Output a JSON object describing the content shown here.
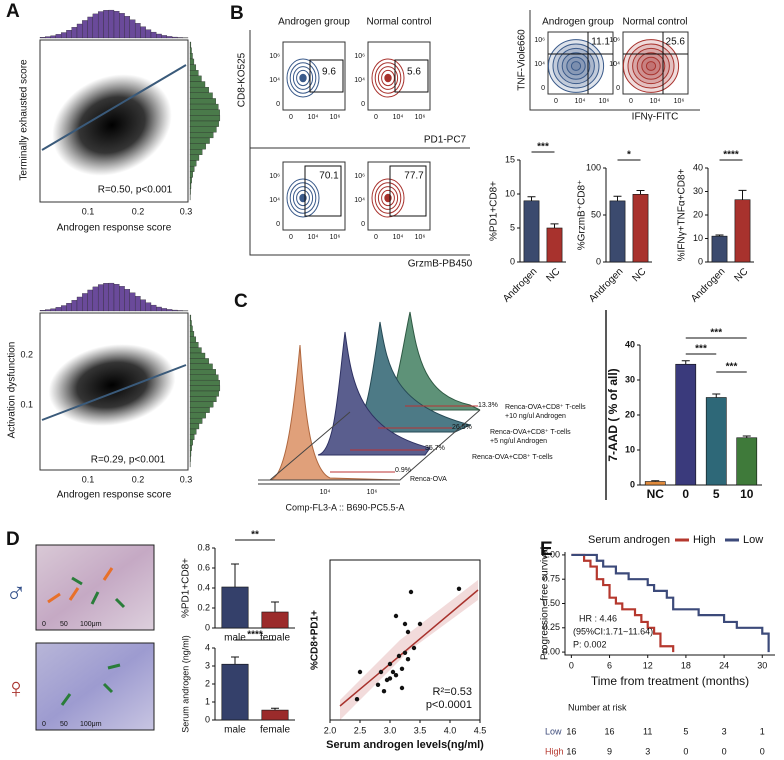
{
  "panels": {
    "letters": [
      "A",
      "B",
      "C",
      "D",
      "E"
    ]
  },
  "panel_a": [
    {
      "stat": "R=0.50, p<0.001",
      "x_label": "Androgen response score",
      "y_label": "Terminally exhausted score",
      "xticks": [
        "0.1",
        "0.2",
        "0.3"
      ]
    },
    {
      "stat": "R=0.29, p<0.001",
      "x_label": "Androgen response score",
      "y_label": "Activation dysfunction",
      "xticks": [
        "0.1",
        "0.2",
        "0.3"
      ],
      "yticks": [
        "0.1",
        "0.2"
      ]
    }
  ],
  "panel_b": {
    "groups": [
      "Androgen group",
      "Normal control"
    ],
    "y_label": "CD8-KO525",
    "x_labels": [
      "PD1-PC7",
      "GrzmB-PB450"
    ],
    "gates": [
      "9.6",
      "5.6",
      "70.1",
      "77.7"
    ],
    "ticks": [
      "0",
      "10⁴",
      "10⁶"
    ],
    "cyto": {
      "groups": [
        "Androgen group",
        "Normal control"
      ],
      "y_label": "TNF-Viole660",
      "x_label": "IFNγ-FITC",
      "quadrants": [
        "11.1",
        "25.6"
      ]
    }
  },
  "panel_c": {
    "x_label": "Comp-FL3-A :: B690-PC5.5-A",
    "ticks": [
      "10⁴",
      "10⁶"
    ],
    "tracks": [
      {
        "lines": [
          "Renca-OVA+CD8⁺ T-cells",
          "+10 ng/ul Androgen"
        ],
        "pct": "13.3%"
      },
      {
        "lines": [
          "Renca-OVA+CD8⁺ T-cells",
          "+5 ng/ul Androgen"
        ],
        "pct": "26.5%"
      },
      {
        "lines": [
          "Renca-OVA+CD8⁺ T-cells"
        ],
        "pct": "35.7%"
      },
      {
        "lines": [
          "Renca-OVA"
        ],
        "pct": "0.9%"
      }
    ]
  },
  "panel_d": {
    "male": "♂",
    "female": "♀",
    "scale": [
      "0",
      "50",
      "100μm"
    ]
  },
  "chart_data": [
    {
      "type": "bar",
      "y_label": "%PD1+CD8+",
      "categories": [
        "Androgen",
        "NC"
      ],
      "values": [
        9,
        5
      ],
      "errors": [
        0.6,
        0.6
      ],
      "colors": [
        "#3b4a6e",
        "#a8322d"
      ],
      "ylim": [
        0,
        15
      ],
      "yticks": [
        0,
        5,
        10,
        15
      ],
      "annotations": [
        "***"
      ]
    },
    {
      "type": "bar",
      "y_label": "%GrzmB⁺CD8⁺",
      "categories": [
        "Androgen",
        "NC"
      ],
      "values": [
        65,
        72
      ],
      "errors": [
        5,
        4
      ],
      "colors": [
        "#3b4a6e",
        "#a8322d"
      ],
      "ylim": [
        0,
        100
      ],
      "yticks": [
        0,
        50,
        100
      ],
      "annotations": [
        "*"
      ]
    },
    {
      "type": "bar",
      "y_label": "%IFNγ+TNFα+CD8+",
      "categories": [
        "Androgen",
        "NC"
      ],
      "values": [
        11,
        26.5
      ],
      "errors": [
        0.5,
        4
      ],
      "colors": [
        "#3b4a6e",
        "#a8322d"
      ],
      "ylim": [
        0,
        40
      ],
      "yticks": [
        0,
        10,
        20,
        30,
        40
      ],
      "annotations": [
        "****"
      ]
    },
    {
      "type": "bar",
      "y_label": "7-AAD ( % of all)",
      "categories": [
        "NC",
        "0",
        "5",
        "10"
      ],
      "values": [
        1,
        34.5,
        25,
        13.5
      ],
      "errors": [
        0.2,
        1,
        1,
        0.5
      ],
      "colors": [
        "#e08a3c",
        "#3a3a7c",
        "#2e6878",
        "#3f7a3a"
      ],
      "ylim": [
        0,
        40
      ],
      "yticks": [
        0,
        10,
        20,
        30,
        40
      ],
      "annotations": [
        "***",
        "***",
        "***"
      ]
    },
    {
      "type": "bar",
      "y_label": "%PD1+CD8+",
      "categories": [
        "male",
        "female"
      ],
      "values": [
        0.41,
        0.16
      ],
      "errors": [
        0.23,
        0.1
      ],
      "colors": [
        "#34406a",
        "#9b2b2b"
      ],
      "ylim": [
        0,
        0.8
      ],
      "yticks": [
        0,
        0.2,
        0.4,
        0.6,
        0.8
      ],
      "annotations": [
        "**"
      ]
    },
    {
      "type": "bar",
      "y_label": "Serum androgen (ng/ml)",
      "categories": [
        "male",
        "female"
      ],
      "values": [
        3.1,
        0.55
      ],
      "errors": [
        0.4,
        0.1
      ],
      "colors": [
        "#34406a",
        "#9b2b2b"
      ],
      "ylim": [
        0,
        4
      ],
      "yticks": [
        0,
        1,
        2,
        3,
        4
      ],
      "annotations": [
        "****"
      ]
    },
    {
      "type": "scatter",
      "x_label": "Serum androgen levels(ng/ml)",
      "y_label": "%CD8+PD1+",
      "color": "#111111",
      "x": [
        2.45,
        2.5,
        2.8,
        2.85,
        2.9,
        2.95,
        3.0,
        3.0,
        3.05,
        3.1,
        3.15,
        3.2,
        3.25,
        3.3,
        3.3,
        3.35,
        3.1,
        3.25,
        3.4,
        3.5,
        3.2,
        4.15
      ],
      "values": [
        0.13,
        0.3,
        0.22,
        0.3,
        0.18,
        0.25,
        0.35,
        0.26,
        0.3,
        0.28,
        0.4,
        0.2,
        0.42,
        0.55,
        0.38,
        0.8,
        0.65,
        0.6,
        0.45,
        0.6,
        0.32,
        0.82
      ],
      "xlim": [
        2.0,
        4.5
      ],
      "ylim": [
        0,
        1
      ],
      "xticks": [
        {
          "value": 2,
          "label": "2.0"
        },
        2.5,
        {
          "value": 3,
          "label": "3.0"
        },
        3.5,
        {
          "value": 4,
          "label": "4.0"
        },
        4.5
      ],
      "annotations": [
        "R²=0.53",
        "p<0.0001"
      ]
    },
    {
      "type": "line",
      "y_label": "Progression−free survival",
      "x_label": "Time from treatment (months)",
      "legend_title": "Serum androgen",
      "series": [
        {
          "name": "High",
          "color": "#b5382e",
          "x": [
            0,
            2,
            3,
            4,
            5,
            6,
            7,
            8,
            10,
            11,
            12,
            13,
            14,
            16
          ],
          "values": [
            1,
            0.94,
            0.88,
            0.75,
            0.69,
            0.56,
            0.5,
            0.44,
            0.38,
            0.31,
            0.25,
            0.19,
            0.06,
            0
          ]
        },
        {
          "name": "Low",
          "color": "#3c4a7a",
          "x": [
            0,
            4,
            5,
            7,
            9,
            12,
            13,
            15,
            16,
            20,
            24,
            26,
            30,
            31
          ],
          "values": [
            1,
            0.94,
            0.88,
            0.81,
            0.75,
            0.69,
            0.63,
            0.56,
            0.44,
            0.38,
            0.31,
            0.25,
            0.19,
            0
          ]
        }
      ],
      "xlim": [
        -1,
        32
      ],
      "ylim": [
        -0.03,
        1.03
      ],
      "xticks": [
        0,
        6,
        12,
        18,
        24,
        30
      ],
      "yticks": [
        {
          "value": 0,
          "label": "0.00"
        },
        {
          "value": 0.25,
          "label": "0.25"
        },
        {
          "value": 0.5,
          "label": "0.50"
        },
        {
          "value": 0.75,
          "label": "0.75"
        },
        {
          "value": 1,
          "label": "1.00"
        }
      ],
      "annotations": [
        "HR : 4.46",
        "(95%CI:1.71~11.64)",
        "P: 0.002"
      ],
      "risk_table": {
        "title": "Number at risk",
        "rows": [
          {
            "name": "Low",
            "counts": [
              16,
              16,
              11,
              5,
              3,
              1
            ]
          },
          {
            "name": "High",
            "counts": [
              16,
              9,
              3,
              0,
              0,
              0
            ]
          }
        ]
      }
    }
  ]
}
